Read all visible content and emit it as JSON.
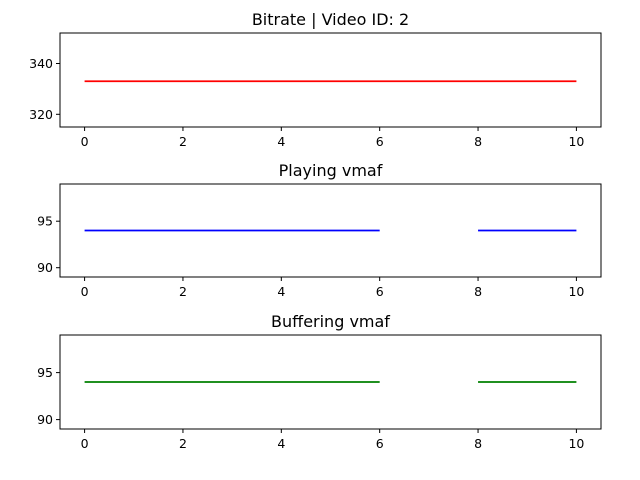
{
  "chart_data": [
    {
      "type": "line",
      "title": "Bitrate | Video ID: 2",
      "xlabel": "",
      "ylabel": "",
      "xlim": [
        -0.5,
        10.5
      ],
      "ylim": [
        315,
        352
      ],
      "xticks": [
        0,
        2,
        4,
        6,
        8,
        10
      ],
      "yticks": [
        320,
        340
      ],
      "grid": false,
      "series": [
        {
          "color": "#ff0000",
          "segments": [
            {
              "x": [
                0,
                10
              ],
              "y": [
                333,
                333
              ]
            }
          ]
        }
      ]
    },
    {
      "type": "line",
      "title": "Playing vmaf",
      "xlabel": "",
      "ylabel": "",
      "xlim": [
        -0.5,
        10.5
      ],
      "ylim": [
        89,
        99
      ],
      "xticks": [
        0,
        2,
        4,
        6,
        8,
        10
      ],
      "yticks": [
        90,
        95
      ],
      "grid": false,
      "series": [
        {
          "color": "#0000ff",
          "segments": [
            {
              "x": [
                0,
                6
              ],
              "y": [
                94,
                94
              ]
            },
            {
              "x": [
                8,
                10
              ],
              "y": [
                94,
                94
              ]
            }
          ]
        }
      ]
    },
    {
      "type": "line",
      "title": "Buffering vmaf",
      "xlabel": "",
      "ylabel": "",
      "xlim": [
        -0.5,
        10.5
      ],
      "ylim": [
        89,
        99
      ],
      "xticks": [
        0,
        2,
        4,
        6,
        8,
        10
      ],
      "yticks": [
        90,
        95
      ],
      "grid": false,
      "series": [
        {
          "color": "#008000",
          "segments": [
            {
              "x": [
                0,
                6
              ],
              "y": [
                94,
                94
              ]
            },
            {
              "x": [
                8,
                10
              ],
              "y": [
                94,
                94
              ]
            }
          ]
        }
      ]
    }
  ]
}
